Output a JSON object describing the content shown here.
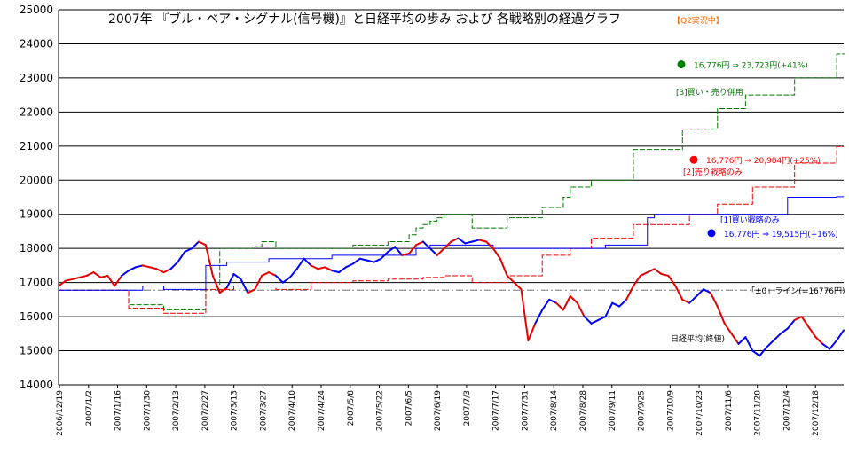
{
  "chart_data": {
    "type": "line",
    "title": "2007年 『ブル・ベア・シグナル(信号機)』と日経平均の歩み および 各戦略別の経過グラフ",
    "badge": "【Q2実況中】",
    "xlabel": "",
    "ylabel": "",
    "ylim": [
      14000,
      25000
    ],
    "yticks": [
      "14000",
      "15000",
      "16000",
      "17000",
      "18000",
      "19000",
      "20000",
      "21000",
      "22000",
      "23000",
      "24000",
      "25000"
    ],
    "xticks": [
      "2006/12/19",
      "2007/1/2",
      "2007/1/16",
      "2007/1/30",
      "2007/2/13",
      "2007/2/27",
      "2007/3/13",
      "2007/3/27",
      "2007/4/10",
      "2007/4/24",
      "2007/5/8",
      "2007/5/22",
      "2007/6/5",
      "2007/6/19",
      "2007/7/3",
      "2007/7/17",
      "2007/7/31",
      "2007/8/14",
      "2007/8/28",
      "2007/9/11",
      "2007/9/25",
      "2007/10/9",
      "2007/10/23",
      "2007/11/6",
      "2007/11/20",
      "2007/12/4",
      "2007/12/18"
    ],
    "grid": true,
    "reference_line": {
      "value": 16776,
      "label": "「±0」ライン(=16776円)"
    },
    "nikkei": {
      "label": "日経平均(終値)",
      "values": [
        16900,
        17050,
        17100,
        17150,
        17200,
        17300,
        17150,
        17200,
        16900,
        17200,
        17350,
        17450,
        17500,
        17450,
        17400,
        17300,
        17400,
        17600,
        17900,
        18000,
        18200,
        18100,
        17200,
        16700,
        16850,
        17250,
        17100,
        16700,
        16800,
        17200,
        17300,
        17200,
        17000,
        17150,
        17400,
        17700,
        17500,
        17400,
        17450,
        17350,
        17300,
        17450,
        17550,
        17700,
        17650,
        17600,
        17700,
        17900,
        18050,
        17800,
        17850,
        18100,
        18200,
        18000,
        17800,
        18000,
        18200,
        18300,
        18150,
        18200,
        18250,
        18200,
        18000,
        17700,
        17200,
        17000,
        16800,
        15300,
        15800,
        16200,
        16500,
        16400,
        16200,
        16600,
        16400,
        16000,
        15800,
        15900,
        16000,
        16400,
        16300,
        16500,
        16900,
        17200,
        17300,
        17400,
        17250,
        17200,
        16900,
        16500,
        16400,
        16600,
        16800,
        16700,
        16300,
        15800,
        15500,
        15200,
        15400,
        15000,
        14850,
        15100,
        15300,
        15500,
        15650,
        15900,
        16000,
        15700,
        15400,
        15200,
        15050,
        15300,
        15600
      ],
      "colors": [
        "#e60000",
        "#e60000",
        "#e60000",
        "#e60000",
        "#e60000",
        "#e60000",
        "#e60000",
        "#e60000",
        "#e60000",
        "#0000ff",
        "#0000ff",
        "#0000ff",
        "#e60000",
        "#e60000",
        "#e60000",
        "#e60000",
        "#0000ff",
        "#0000ff",
        "#0000ff",
        "#0000ff",
        "#e60000",
        "#e60000",
        "#e60000",
        "#e60000",
        "#0000ff",
        "#0000ff",
        "#0000ff",
        "#e60000",
        "#e60000",
        "#e60000",
        "#e60000",
        "#0000ff",
        "#0000ff",
        "#0000ff",
        "#0000ff",
        "#0000ff",
        "#e60000",
        "#e60000",
        "#e60000",
        "#0000ff",
        "#0000ff",
        "#0000ff",
        "#0000ff",
        "#0000ff",
        "#0000ff",
        "#0000ff",
        "#0000ff",
        "#0000ff",
        "#0000ff",
        "#e60000",
        "#e60000",
        "#e60000",
        "#0000ff",
        "#0000ff",
        "#e60000",
        "#e60000",
        "#e60000",
        "#0000ff",
        "#0000ff",
        "#0000ff",
        "#e60000",
        "#e60000",
        "#e60000",
        "#e60000",
        "#e60000",
        "#e60000",
        "#e60000",
        "#e60000",
        "#0000ff",
        "#0000ff",
        "#0000ff",
        "#e60000",
        "#e60000",
        "#e60000",
        "#e60000",
        "#0000ff",
        "#0000ff",
        "#0000ff",
        "#0000ff",
        "#0000ff",
        "#0000ff",
        "#e60000",
        "#e60000",
        "#e60000",
        "#e60000",
        "#e60000",
        "#e60000",
        "#e60000",
        "#e60000",
        "#e60000",
        "#0000ff",
        "#0000ff",
        "#0000ff",
        "#e60000",
        "#e60000",
        "#e60000",
        "#e60000",
        "#0000ff",
        "#0000ff",
        "#0000ff",
        "#0000ff",
        "#0000ff",
        "#0000ff",
        "#0000ff",
        "#0000ff",
        "#e60000",
        "#e60000",
        "#e60000",
        "#e60000",
        "#0000ff",
        "#0000ff",
        "#0000ff"
      ]
    },
    "series": [
      {
        "name": "[3]買い・売り併用",
        "color": "#007700",
        "dashed": true,
        "values": [
          16776,
          16776,
          16776,
          16776,
          16776,
          16776,
          16776,
          16776,
          16776,
          16776,
          16350,
          16350,
          16350,
          16350,
          16350,
          16200,
          16200,
          16200,
          16200,
          16200,
          16200,
          16900,
          16900,
          18000,
          18000,
          18000,
          18000,
          18000,
          18050,
          18200,
          18200,
          18000,
          18000,
          18000,
          18000,
          18000,
          18000,
          18000,
          18000,
          18000,
          18000,
          18000,
          18100,
          18100,
          18100,
          18100,
          18100,
          18200,
          18200,
          18200,
          18400,
          18600,
          18700,
          18800,
          18900,
          19000,
          19000,
          19000,
          19000,
          18600,
          18600,
          18600,
          18600,
          18600,
          18900,
          18900,
          18900,
          18900,
          18900,
          19200,
          19200,
          19200,
          19500,
          19800,
          19800,
          19800,
          20000,
          20000,
          20000,
          20000,
          20000,
          20000,
          20900,
          20900,
          20900,
          20900,
          20900,
          20900,
          20900,
          21500,
          21500,
          21500,
          21500,
          21500,
          22100,
          22100,
          22100,
          22100,
          22500,
          22500,
          22500,
          22500,
          22500,
          22500,
          22500,
          23000,
          23000,
          23000,
          23000,
          23000,
          23000,
          23700,
          23723
        ]
      },
      {
        "name": "[2]売り戦略のみ",
        "color": "#e60000",
        "dashed": true,
        "values": [
          16776,
          16776,
          16776,
          16776,
          16776,
          16776,
          16776,
          16776,
          16776,
          16776,
          16250,
          16250,
          16250,
          16250,
          16250,
          16100,
          16100,
          16100,
          16100,
          16100,
          16100,
          16800,
          16800,
          16800,
          16800,
          16900,
          16900,
          16900,
          16900,
          16900,
          16900,
          16800,
          16800,
          16800,
          16800,
          16800,
          17000,
          17000,
          17000,
          17000,
          17000,
          17000,
          17050,
          17050,
          17050,
          17050,
          17050,
          17100,
          17100,
          17100,
          17100,
          17100,
          17150,
          17150,
          17150,
          17200,
          17200,
          17200,
          17200,
          17000,
          17000,
          17000,
          17000,
          17000,
          17200,
          17200,
          17200,
          17200,
          17200,
          17800,
          17800,
          17800,
          17800,
          18000,
          18000,
          18000,
          18300,
          18300,
          18300,
          18300,
          18300,
          18300,
          18700,
          18700,
          18700,
          18700,
          18700,
          18700,
          18700,
          18700,
          19000,
          19000,
          19000,
          19000,
          19300,
          19300,
          19300,
          19300,
          19300,
          19800,
          19800,
          19800,
          19800,
          19800,
          19800,
          20500,
          20500,
          20500,
          20500,
          20500,
          20500,
          20984,
          20984
        ]
      },
      {
        "name": "[1]買い戦略のみ",
        "color": "#0000ff",
        "dashed": false,
        "values": [
          16776,
          16776,
          16776,
          16776,
          16776,
          16776,
          16776,
          16776,
          16776,
          16776,
          16776,
          16776,
          16900,
          16900,
          16900,
          16800,
          16800,
          16800,
          16800,
          16800,
          16800,
          17500,
          17500,
          17500,
          17600,
          17600,
          17600,
          17600,
          17600,
          17600,
          17700,
          17700,
          17700,
          17700,
          17700,
          17700,
          17700,
          17700,
          17700,
          17800,
          17800,
          17800,
          17800,
          17800,
          17800,
          17800,
          17800,
          17800,
          17800,
          17800,
          17800,
          18000,
          18000,
          18100,
          18100,
          18100,
          18100,
          18100,
          18100,
          18100,
          18100,
          18100,
          18000,
          18000,
          18000,
          18000,
          18000,
          18000,
          18000,
          18000,
          18000,
          18000,
          18000,
          18000,
          18000,
          18000,
          18000,
          18000,
          18100,
          18100,
          18100,
          18100,
          18100,
          18100,
          18900,
          19000,
          19000,
          19000,
          19000,
          19000,
          19000,
          19000,
          19000,
          19000,
          19000,
          19000,
          19000,
          19000,
          19000,
          19000,
          19000,
          19000,
          19000,
          19000,
          19500,
          19500,
          19500,
          19500,
          19500,
          19500,
          19500,
          19515,
          19515
        ]
      }
    ],
    "annotations": [
      {
        "key": "green",
        "color": "#008000",
        "value_y": 23400,
        "text": "16,776円 ⇒ 23,723円(+41%)"
      },
      {
        "key": "red",
        "color": "#ff0000",
        "value_y": 20600,
        "text": "16,776円 ⇒ 20,984円(+25%)"
      },
      {
        "key": "blue",
        "color": "#0000ff",
        "value_y": 18450,
        "text": "16,776円 ⇒ 19,515円(+16%)"
      }
    ]
  }
}
